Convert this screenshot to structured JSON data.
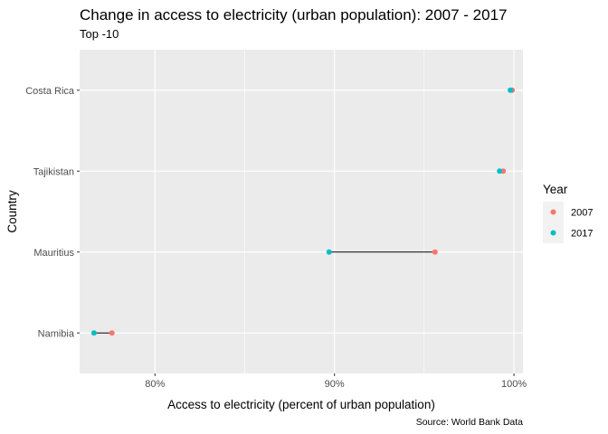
{
  "chart_data": {
    "type": "dumbbell",
    "title": "Change in access to electricity (urban population): 2007 - 2017",
    "subtitle": "Top -10",
    "xlabel": "Access to electricity (percent of urban population)",
    "ylabel": "Country",
    "caption": "Source: World Bank Data",
    "xlim": [
      75.8,
      100.5
    ],
    "x_ticks": [
      80,
      90,
      100
    ],
    "x_tick_labels": [
      "80%",
      "90%",
      "100%"
    ],
    "grid": true,
    "legend": {
      "title": "Year",
      "placement": "right",
      "entries": [
        {
          "label": "2007",
          "color": "#F8766D"
        },
        {
          "label": "2017",
          "color": "#00BFC4"
        }
      ]
    },
    "categories": [
      "Costa Rica",
      "Tajikistan",
      "Mauritius",
      "Namibia"
    ],
    "series": [
      {
        "name": "2007",
        "color": "#F8766D",
        "values": [
          99.9,
          99.4,
          95.6,
          77.6
        ]
      },
      {
        "name": "2017",
        "color": "#00BFC4",
        "values": [
          99.8,
          99.2,
          89.7,
          76.6
        ]
      }
    ]
  }
}
